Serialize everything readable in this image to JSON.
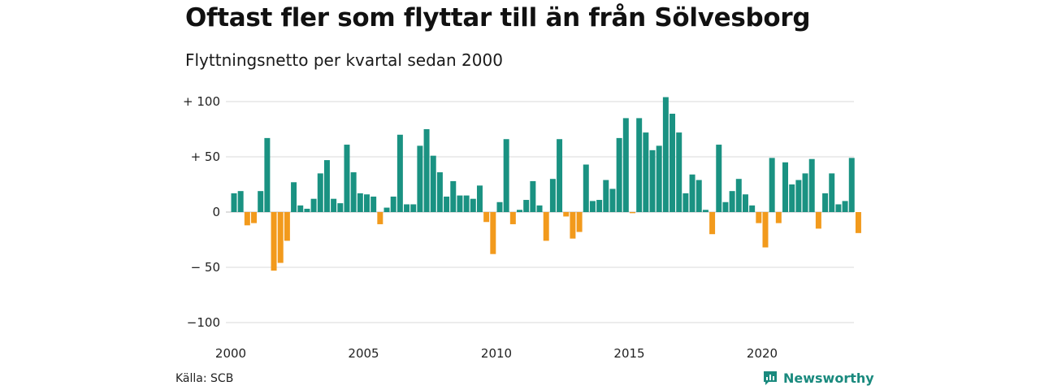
{
  "title": "Oftast fler som flyttar till än från Sölvesborg",
  "subtitle": "Flyttningsnetto per kvartal sedan 2000",
  "source": "Källa: SCB",
  "brand": "Newsworthy",
  "colors": {
    "positive": "#1a9282",
    "negative": "#f29a1c",
    "grid": "#d9d9d9",
    "brand": "#1a8a7e"
  },
  "chart_data": {
    "type": "bar",
    "title": "Oftast fler som flyttar till än från Sölvesborg",
    "subtitle": "Flyttningsnetto per kvartal sedan 2000",
    "ylim": [
      -100,
      100
    ],
    "y_ticks": [
      100,
      50,
      0,
      -50,
      -100
    ],
    "y_tick_labels": [
      "+ 100",
      "+  50",
      "0",
      "− 50",
      "−100"
    ],
    "x_ticks": [
      2000,
      2005,
      2010,
      2015,
      2020
    ],
    "x_tick_labels": [
      "2000",
      "2005",
      "2010",
      "2015",
      "2020"
    ],
    "grid": true,
    "legend": "none",
    "start_year": 2000,
    "quarters_per_year": 4,
    "values": [
      17,
      19,
      -12,
      -10,
      19,
      67,
      -53,
      -46,
      -26,
      27,
      6,
      3,
      12,
      35,
      47,
      12,
      8,
      61,
      36,
      17,
      16,
      14,
      -11,
      4,
      14,
      70,
      7,
      7,
      60,
      75,
      51,
      36,
      14,
      28,
      15,
      15,
      12,
      24,
      -9,
      -38,
      9,
      66,
      -11,
      2,
      11,
      28,
      6,
      -26,
      30,
      66,
      -4,
      -24,
      -18,
      43,
      10,
      11,
      29,
      21,
      67,
      85,
      -1,
      85,
      72,
      56,
      60,
      104,
      89,
      72,
      17,
      34,
      29,
      2,
      -20,
      61,
      9,
      19,
      30,
      16,
      6,
      -10,
      -32,
      49,
      -10,
      45,
      25,
      29,
      35,
      48,
      -15,
      17,
      35,
      7,
      10,
      49,
      -19
    ]
  }
}
